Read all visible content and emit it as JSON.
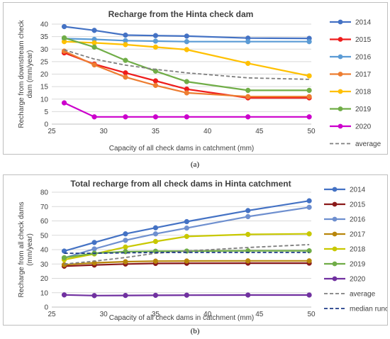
{
  "captions": [
    "(a)",
    "(b)"
  ],
  "chart_data": [
    {
      "type": "line",
      "title": "Recharge from the Hinta check dam",
      "xlabel": "Capacity of all check dams in catchment (mm)",
      "ylabel": "Recharge from downstream check dam  (mm/year)",
      "xlim": [
        25,
        50
      ],
      "ylim": [
        0,
        40
      ],
      "xticks": [
        25,
        30,
        35,
        40,
        45,
        50
      ],
      "yticks": [
        0,
        5,
        10,
        15,
        20,
        25,
        30,
        35,
        40
      ],
      "grid": true,
      "legend": "right",
      "x": [
        26.2,
        29.1,
        32.1,
        35.0,
        38.0,
        43.9,
        49.8
      ],
      "series": [
        {
          "name": "2014",
          "color": "#4472c4",
          "dash": false,
          "markers": true,
          "values": [
            39.0,
            37.5,
            35.6,
            35.4,
            35.2,
            34.4,
            34.3
          ]
        },
        {
          "name": "2015",
          "color": "#ee1c1c",
          "dash": false,
          "markers": true,
          "values": [
            28.5,
            24.0,
            20.5,
            17.3,
            14.0,
            10.5,
            10.5
          ]
        },
        {
          "name": "2016",
          "color": "#5b9bd5",
          "dash": false,
          "markers": true,
          "values": [
            34.2,
            33.9,
            33.4,
            33.2,
            33.0,
            33.0,
            33.0
          ]
        },
        {
          "name": "2017",
          "color": "#ed7d31",
          "dash": false,
          "markers": true,
          "values": [
            29.2,
            23.7,
            18.8,
            15.5,
            12.5,
            11.0,
            11.0
          ]
        },
        {
          "name": "2018",
          "color": "#ffc000",
          "dash": false,
          "markers": true,
          "values": [
            33.0,
            32.5,
            31.8,
            30.8,
            29.8,
            24.3,
            19.3
          ]
        },
        {
          "name": "2019",
          "color": "#70ad47",
          "dash": false,
          "markers": true,
          "values": [
            34.5,
            30.8,
            25.5,
            21.2,
            17.0,
            13.5,
            13.5
          ]
        },
        {
          "name": "2020",
          "color": "#cc00cc",
          "dash": false,
          "markers": true,
          "values": [
            8.5,
            2.9,
            2.9,
            2.9,
            2.9,
            2.9,
            2.9
          ]
        },
        {
          "name": "average",
          "color": "#7f7f7f",
          "dash": true,
          "markers": false,
          "values": [
            29.7,
            26.0,
            23.6,
            21.9,
            20.5,
            18.5,
            17.9
          ]
        }
      ]
    },
    {
      "type": "line",
      "title": "Total recharge from all check dams in Hinta catchment",
      "xlabel": "Capacity of all check dams in catchment (mm)",
      "ylabel": "Recharge from all check dams (mm/year)",
      "xlim": [
        25,
        50
      ],
      "ylim": [
        0,
        80
      ],
      "xticks": [
        25,
        30,
        35,
        40,
        45,
        50
      ],
      "yticks": [
        0,
        10,
        20,
        30,
        40,
        50,
        60,
        70,
        80
      ],
      "grid": true,
      "legend": "right",
      "x": [
        26.2,
        29.1,
        32.1,
        35.0,
        38.0,
        43.9,
        49.8
      ],
      "series": [
        {
          "name": "2014",
          "color": "#4472c4",
          "dash": false,
          "markers": true,
          "values": [
            39.0,
            45.0,
            51.0,
            55.2,
            59.5,
            67.2,
            74.0
          ]
        },
        {
          "name": "2015",
          "color": "#8b1a1a",
          "dash": false,
          "markers": true,
          "values": [
            28.5,
            29.3,
            30.0,
            30.4,
            30.5,
            30.6,
            30.6
          ]
        },
        {
          "name": "2016",
          "color": "#6e8fcf",
          "dash": false,
          "markers": true,
          "values": [
            34.2,
            40.5,
            46.5,
            51.0,
            55.0,
            63.0,
            69.5
          ]
        },
        {
          "name": "2017",
          "color": "#b8860b",
          "dash": false,
          "markers": true,
          "values": [
            29.5,
            30.8,
            31.6,
            32.0,
            32.1,
            32.2,
            32.2
          ]
        },
        {
          "name": "2018",
          "color": "#c8c800",
          "dash": false,
          "markers": true,
          "values": [
            33.0,
            37.0,
            41.8,
            45.7,
            49.2,
            50.6,
            51.0
          ]
        },
        {
          "name": "2019",
          "color": "#70ad47",
          "dash": false,
          "markers": true,
          "values": [
            34.4,
            37.5,
            38.6,
            38.9,
            39.0,
            39.2,
            39.2
          ]
        },
        {
          "name": "2020",
          "color": "#7030a0",
          "dash": false,
          "markers": true,
          "values": [
            8.5,
            8.0,
            8.1,
            8.2,
            8.3,
            8.4,
            8.4
          ]
        },
        {
          "name": "average",
          "color": "#7f7f7f",
          "dash": true,
          "markers": false,
          "values": [
            30.0,
            32.0,
            34.5,
            37.5,
            39.0,
            41.5,
            43.5
          ]
        },
        {
          "name": "median runoff",
          "color": "#1f3c88",
          "dash": true,
          "markers": false,
          "values": [
            37.5,
            37.5,
            37.8,
            38.0,
            38.0,
            38.0,
            38.0
          ]
        }
      ]
    }
  ]
}
